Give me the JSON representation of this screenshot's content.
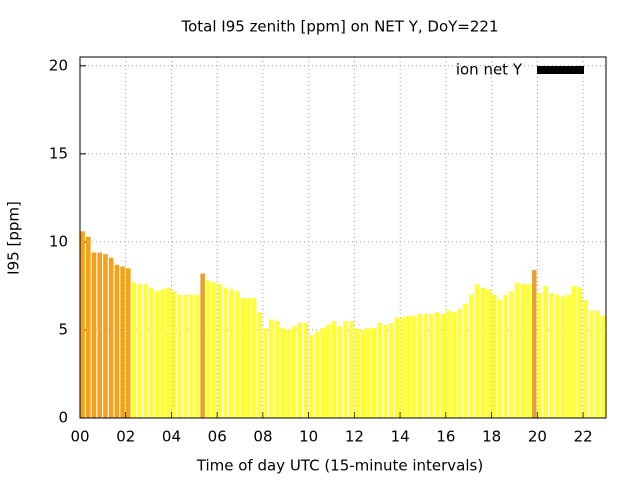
{
  "chart_data": {
    "type": "bar",
    "title": "Total I95 zenith [ppm] on NET Y, DoY=221",
    "x_label": "Time of day UTC (15-minute intervals)",
    "y_label": "I95 [ppm]",
    "x": [
      0,
      0.25,
      0.5,
      0.75,
      1,
      1.25,
      1.5,
      1.75,
      2,
      2.25,
      2.5,
      2.75,
      3,
      3.25,
      3.5,
      3.75,
      4,
      4.25,
      4.5,
      4.75,
      5,
      5.25,
      5.5,
      5.75,
      6,
      6.25,
      6.5,
      6.75,
      7,
      7.25,
      7.5,
      7.75,
      8,
      8.25,
      8.5,
      8.75,
      9,
      9.25,
      9.5,
      9.75,
      10,
      10.25,
      10.5,
      10.75,
      11,
      11.25,
      11.5,
      11.75,
      12,
      12.25,
      12.5,
      12.75,
      13,
      13.25,
      13.5,
      13.75,
      14,
      14.25,
      14.5,
      14.75,
      15,
      15.25,
      15.5,
      15.75,
      16,
      16.25,
      16.5,
      16.75,
      17,
      17.25,
      17.5,
      17.75,
      18,
      18.25,
      18.5,
      18.75,
      19,
      19.25,
      19.5,
      19.75,
      20,
      20.25,
      20.5,
      20.75,
      21,
      21.25,
      21.5,
      21.75,
      22,
      22.25,
      22.5,
      22.75
    ],
    "series": [
      {
        "name": "ion net Y",
        "color": "#000000",
        "values": [
          10.6,
          10.3,
          9.4,
          9.4,
          9.3,
          9.1,
          8.7,
          8.6,
          8.5,
          7.7,
          7.6,
          7.6,
          7.4,
          7.2,
          7.3,
          7.4,
          7.2,
          7.0,
          7.0,
          7.0,
          7.0,
          8.2,
          7.8,
          7.7,
          7.6,
          7.4,
          7.3,
          7.2,
          6.8,
          6.8,
          6.8,
          6.0,
          5.1,
          5.6,
          5.5,
          5.1,
          5.0,
          5.2,
          5.4,
          5.4,
          4.7,
          4.9,
          5.1,
          5.3,
          5.5,
          5.2,
          5.5,
          5.5,
          5.1,
          5.0,
          5.1,
          5.1,
          5.4,
          5.3,
          5.4,
          5.7,
          5.7,
          5.8,
          5.8,
          5.9,
          5.9,
          5.9,
          6.0,
          5.9,
          6.1,
          6.0,
          6.2,
          6.5,
          7.0,
          7.6,
          7.4,
          7.3,
          7.0,
          6.7,
          7.0,
          7.2,
          7.7,
          7.6,
          7.6,
          8.4,
          7.1,
          7.5,
          7.1,
          7.0,
          6.9,
          7.0,
          7.5,
          7.4,
          6.7,
          6.1,
          6.1,
          5.8
        ],
        "bar_colors": [
          "#f7a11a",
          "#f7a11a",
          "#f7a11a",
          "#f7a11a",
          "#f7a11a",
          "#f7a11a",
          "#f7a11a",
          "#f7a11a",
          "#f7a11a",
          "#ffff33",
          "#ffff33",
          "#ffff33",
          "#ffff33",
          "#ffff33",
          "#ffff33",
          "#ffff33",
          "#ffff33",
          "#ffff33",
          "#ffff33",
          "#ffff33",
          "#ffff33",
          "#e8a030",
          "#ffff33",
          "#ffff33",
          "#ffff33",
          "#ffff33",
          "#ffff33",
          "#ffff33",
          "#ffff33",
          "#ffff33",
          "#ffff33",
          "#ffff33",
          "#ffff33",
          "#ffff33",
          "#ffff33",
          "#ffff33",
          "#ffff33",
          "#ffff33",
          "#ffff33",
          "#ffff33",
          "#ffff33",
          "#ffff33",
          "#ffff33",
          "#ffff33",
          "#ffff33",
          "#ffff33",
          "#ffff33",
          "#ffff33",
          "#ffff33",
          "#ffff33",
          "#ffff33",
          "#ffff33",
          "#ffff33",
          "#ffff33",
          "#ffff33",
          "#ffff33",
          "#ffff33",
          "#ffff33",
          "#ffff33",
          "#ffff33",
          "#ffff33",
          "#ffff33",
          "#ffff33",
          "#ffff33",
          "#ffff33",
          "#ffff33",
          "#ffff33",
          "#ffff33",
          "#ffff33",
          "#ffff33",
          "#ffff33",
          "#ffff33",
          "#ffff33",
          "#ffff33",
          "#ffff33",
          "#ffff33",
          "#ffff33",
          "#ffff33",
          "#ffff33",
          "#e8a030",
          "#ffff33",
          "#ffff33",
          "#ffff33",
          "#ffff33",
          "#ffff33",
          "#ffff33",
          "#ffff33",
          "#ffff33",
          "#ffff33",
          "#ffff33",
          "#ffff33",
          "#ffff33"
        ]
      }
    ],
    "xlim": [
      0,
      23
    ],
    "xticks": [
      {
        "value": 0,
        "label": "00"
      },
      {
        "value": 2,
        "label": "02"
      },
      {
        "value": 4,
        "label": "04"
      },
      {
        "value": 6,
        "label": "06"
      },
      {
        "value": 8,
        "label": "08"
      },
      {
        "value": 10,
        "label": "10"
      },
      {
        "value": 12,
        "label": "12"
      },
      {
        "value": 14,
        "label": "14"
      },
      {
        "value": 16,
        "label": "16"
      },
      {
        "value": 18,
        "label": "18"
      },
      {
        "value": 20,
        "label": "20"
      },
      {
        "value": 22,
        "label": "22"
      }
    ],
    "ylim": [
      0,
      20.5
    ],
    "yticks": [
      0,
      5,
      10,
      15,
      20
    ],
    "grid": true,
    "legend": "top-right"
  }
}
